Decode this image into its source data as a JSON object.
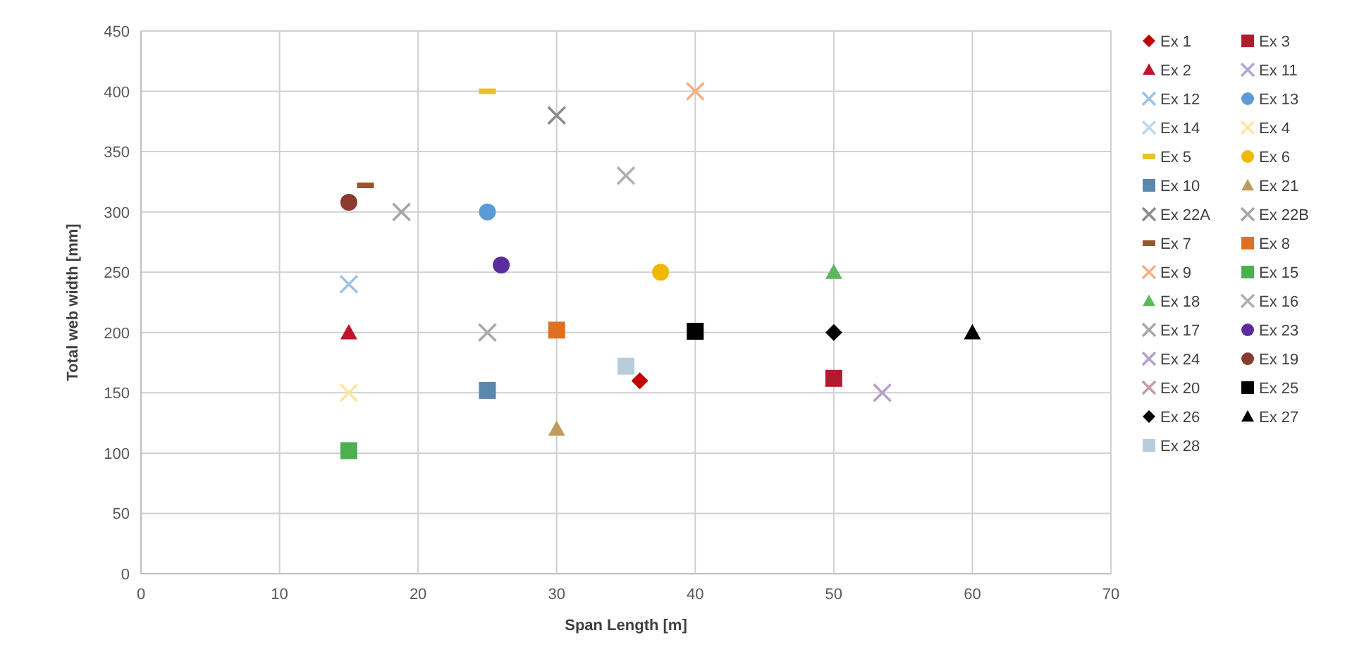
{
  "chart_data": {
    "type": "scatter",
    "xlabel": "Span Length [m]",
    "ylabel": "Total web width [mm]",
    "xlim": [
      0,
      70
    ],
    "ylim": [
      0,
      450
    ],
    "xticks": [
      0,
      10,
      20,
      30,
      40,
      50,
      60,
      70
    ],
    "yticks": [
      0,
      50,
      100,
      150,
      200,
      250,
      300,
      350,
      400,
      450
    ],
    "grid": true,
    "legend": "right",
    "series": [
      {
        "name": "Ex 1",
        "color": "#c00000",
        "marker": "diamond",
        "x": [
          36
        ],
        "values": [
          160
        ]
      },
      {
        "name": "Ex 3",
        "color": "#b01c2e",
        "marker": "square",
        "x": [
          50
        ],
        "values": [
          162
        ]
      },
      {
        "name": "Ex 2",
        "color": "#c0142c",
        "marker": "triangle",
        "x": [
          15
        ],
        "values": [
          200
        ]
      },
      {
        "name": "Ex 11",
        "color": "#b4a7d6",
        "marker": "cross"
      },
      {
        "name": "Ex 12",
        "color": "#9dc3e6",
        "marker": "cross",
        "x": [
          15
        ],
        "values": [
          240
        ]
      },
      {
        "name": "Ex 13",
        "color": "#5b9bd5",
        "marker": "circle",
        "x": [
          25
        ],
        "values": [
          300
        ]
      },
      {
        "name": "Ex 14",
        "color": "#bdd7ee",
        "marker": "cross"
      },
      {
        "name": "Ex 4",
        "color": "#ffe699",
        "marker": "cross",
        "x": [
          15
        ],
        "values": [
          150
        ]
      },
      {
        "name": "Ex 5",
        "color": "#e6c229",
        "x": [
          25
        ],
        "values": [
          400
        ]
      },
      {
        "name": "Ex 6",
        "color": "#f0b800",
        "marker": "circle",
        "x": [
          37.5
        ],
        "values": [
          250
        ]
      },
      {
        "name": "Ex 10",
        "color": "#5b86ad",
        "marker": "square",
        "x": [
          25
        ],
        "values": [
          152
        ]
      },
      {
        "name": "Ex 21",
        "color": "#c09a5b",
        "marker": "triangle",
        "x": [
          30
        ],
        "values": [
          120
        ]
      },
      {
        "name": "Ex 22A",
        "color": "#8c8c8c",
        "marker": "cross",
        "x": [
          30
        ],
        "values": [
          380
        ]
      },
      {
        "name": "Ex 22B",
        "color": "#a6a6a6",
        "marker": "cross",
        "x": [
          18.8
        ],
        "values": [
          300
        ]
      },
      {
        "name": "Ex 7",
        "color": "#a0522d",
        "x": [
          16.2
        ],
        "values": [
          322
        ]
      },
      {
        "name": "Ex 8",
        "color": "#e07020",
        "marker": "square",
        "x": [
          30
        ],
        "values": [
          202
        ]
      },
      {
        "name": "Ex 9",
        "color": "#f4b183",
        "marker": "cross",
        "x": [
          40
        ],
        "values": [
          400
        ]
      },
      {
        "name": "Ex 15",
        "color": "#4caf50",
        "marker": "square",
        "x": [
          15
        ],
        "values": [
          102
        ]
      },
      {
        "name": "Ex 18",
        "color": "#5cb85c",
        "marker": "triangle",
        "x": [
          50
        ],
        "values": [
          250
        ]
      },
      {
        "name": "Ex 16",
        "color": "#b0b0b0",
        "marker": "cross",
        "x": [
          35
        ],
        "values": [
          330
        ]
      },
      {
        "name": "Ex 17",
        "color": "#a9a9a9",
        "marker": "cross",
        "x": [
          25
        ],
        "values": [
          200
        ]
      },
      {
        "name": "Ex 23",
        "color": "#5b2c9e",
        "marker": "circle",
        "x": [
          26
        ],
        "values": [
          256
        ]
      },
      {
        "name": "Ex 24",
        "color": "#b4a0c8",
        "marker": "cross",
        "x": [
          53.5
        ],
        "values": [
          150
        ]
      },
      {
        "name": "Ex 19",
        "color": "#8b3a2e",
        "marker": "circle",
        "x": [
          15
        ],
        "values": [
          308
        ]
      },
      {
        "name": "Ex 20",
        "color": "#c89aa8",
        "marker": "cross"
      },
      {
        "name": "Ex 25",
        "color": "#000000",
        "marker": "square",
        "x": [
          40
        ],
        "values": [
          201
        ]
      },
      {
        "name": "Ex 26",
        "color": "#000000",
        "marker": "diamond",
        "x": [
          50
        ],
        "values": [
          200
        ]
      },
      {
        "name": "Ex 27",
        "color": "#000000",
        "marker": "triangle",
        "x": [
          60
        ],
        "values": [
          200
        ]
      },
      {
        "name": "Ex 28",
        "color": "#b8ccdc",
        "marker": "square",
        "x": [
          35
        ],
        "values": [
          172
        ]
      }
    ]
  }
}
